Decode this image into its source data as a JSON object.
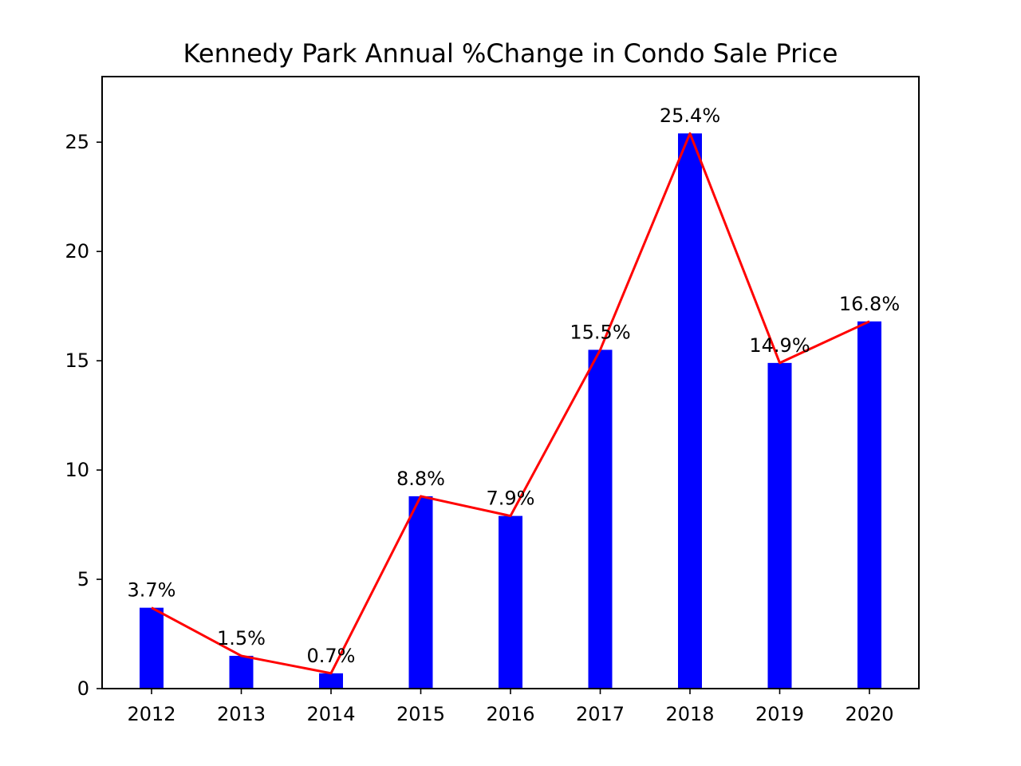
{
  "chart_data": {
    "type": "bar",
    "title": "Kennedy Park Annual %Change in Condo Sale Price",
    "xlabel": "",
    "ylabel": "",
    "categories": [
      "2012",
      "2013",
      "2014",
      "2015",
      "2016",
      "2017",
      "2018",
      "2019",
      "2020"
    ],
    "series": [
      {
        "values": [
          3.7,
          1.5,
          0.7,
          8.8,
          7.9,
          15.5,
          25.4,
          14.9,
          16.8
        ],
        "data_labels": [
          "3.7%",
          "1.5%",
          "0.7%",
          "8.8%",
          "7.9%",
          "15.5%",
          "25.4%",
          "14.9%",
          "16.8%"
        ],
        "color": "#0000ff"
      }
    ],
    "overlay_line": {
      "values": [
        3.7,
        1.5,
        0.7,
        8.8,
        7.9,
        15.5,
        25.4,
        14.9,
        16.8
      ],
      "color": "#ff0000"
    },
    "ylim": [
      0,
      28
    ],
    "yticks": [
      0,
      5,
      10,
      15,
      20,
      25
    ],
    "grid": false,
    "legend": "none"
  }
}
